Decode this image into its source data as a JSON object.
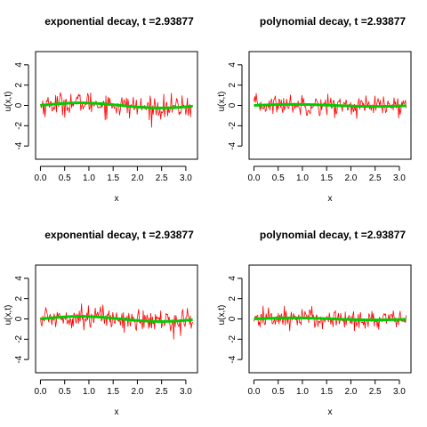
{
  "chart_data": [
    {
      "type": "line",
      "title": "exponential decay, t =2.93877",
      "xlabel": "x",
      "ylabel": "u(x,t)",
      "xlim": [
        -0.1,
        3.24
      ],
      "ylim": [
        -5.3,
        5.3
      ],
      "xticks": [
        "0.0",
        "0.5",
        "1.0",
        "1.5",
        "2.0",
        "2.5",
        "3.0"
      ],
      "yticks": [
        "-4",
        "-2",
        "0",
        "2",
        "4"
      ],
      "series": [
        {
          "color": "#ff0000",
          "style": "noisy",
          "x_range": [
            0,
            3.1416
          ],
          "amplitude": 0.25,
          "noise_sd": 0.55,
          "points": 200
        },
        {
          "color": "#00cc00",
          "style": "smooth",
          "x_range": [
            0,
            3.1416
          ],
          "amplitude": 0.25
        }
      ]
    },
    {
      "type": "line",
      "title": "polynomial decay, t =2.93877",
      "xlabel": "x",
      "ylabel": "u(x,t)",
      "xlim": [
        -0.1,
        3.24
      ],
      "ylim": [
        -5.3,
        5.3
      ],
      "xticks": [
        "0.0",
        "0.5",
        "1.0",
        "1.5",
        "2.0",
        "2.5",
        "3.0"
      ],
      "yticks": [
        "-4",
        "-2",
        "0",
        "2",
        "4"
      ],
      "series": [
        {
          "color": "#ff0000",
          "style": "noisy",
          "x_range": [
            0,
            3.1416
          ],
          "amplitude": 0.1,
          "noise_sd": 0.5,
          "points": 200
        },
        {
          "color": "#00cc00",
          "style": "smooth",
          "x_range": [
            0,
            3.1416
          ],
          "amplitude": 0.1
        }
      ]
    },
    {
      "type": "line",
      "title": "exponential decay, t =2.93877",
      "xlabel": "x",
      "ylabel": "u(x,t)",
      "xlim": [
        -0.1,
        3.24
      ],
      "ylim": [
        -5.3,
        5.3
      ],
      "xticks": [
        "0.0",
        "0.5",
        "1.0",
        "1.5",
        "2.0",
        "2.5",
        "3.0"
      ],
      "yticks": [
        "-4",
        "-2",
        "0",
        "2",
        "4"
      ],
      "series": [
        {
          "color": "#ff0000",
          "style": "noisy",
          "x_range": [
            0,
            3.1416
          ],
          "amplitude": 0.25,
          "noise_sd": 0.55,
          "points": 200
        },
        {
          "color": "#00cc00",
          "style": "smooth",
          "x_range": [
            0,
            3.1416
          ],
          "amplitude": 0.25
        }
      ]
    },
    {
      "type": "line",
      "title": "polynomial decay, t =2.93877",
      "xlabel": "x",
      "ylabel": "u(x,t)",
      "xlim": [
        -0.1,
        3.24
      ],
      "ylim": [
        -5.3,
        5.3
      ],
      "xticks": [
        "0.0",
        "0.5",
        "1.0",
        "1.5",
        "2.0",
        "2.5",
        "3.0"
      ],
      "yticks": [
        "-4",
        "-2",
        "0",
        "2",
        "4"
      ],
      "series": [
        {
          "color": "#ff0000",
          "style": "noisy",
          "x_range": [
            0,
            3.1416
          ],
          "amplitude": 0.1,
          "noise_sd": 0.5,
          "points": 200
        },
        {
          "color": "#00cc00",
          "style": "smooth",
          "x_range": [
            0,
            3.1416
          ],
          "amplitude": 0.1
        }
      ]
    }
  ]
}
